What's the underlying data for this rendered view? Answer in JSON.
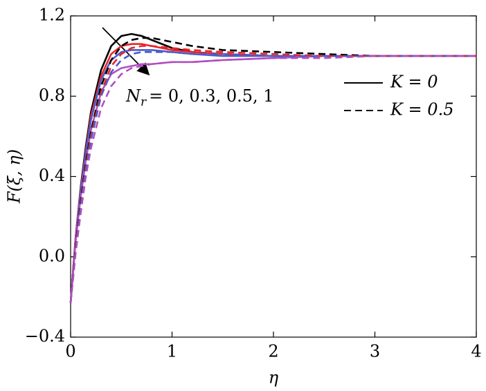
{
  "chart_data": {
    "type": "line",
    "xlabel": "η",
    "ylabel": "F(ξ, η)",
    "annotation": {
      "symbol": "N",
      "subscript": "r",
      "text": "= 0, 0.3, 0.5, 1"
    },
    "legend": [
      {
        "label": "K = 0",
        "dash": "solid"
      },
      {
        "label": "K = 0.5",
        "dash": "dashed"
      }
    ],
    "xlim": [
      0,
      4
    ],
    "ylim": [
      -0.4,
      1.2
    ],
    "xticks": [
      0,
      1,
      2,
      3,
      4
    ],
    "yticks": [
      {
        "value": -0.4,
        "label": "−0.4"
      },
      {
        "value": 0,
        "label": "0.0"
      },
      0.4,
      0.8,
      1.2
    ],
    "x": [
      0,
      0.05,
      0.1,
      0.15,
      0.2,
      0.3,
      0.4,
      0.5,
      0.6,
      0.7,
      0.8,
      1.0,
      1.2,
      1.5,
      2,
      2.5,
      3,
      4
    ],
    "series": [
      {
        "color": "#000000",
        "dash": "solid",
        "values": [
          -0.23,
          0.1,
          0.35,
          0.55,
          0.72,
          0.93,
          1.05,
          1.1,
          1.11,
          1.1,
          1.08,
          1.04,
          1.02,
          1.01,
          1.0,
          1.0,
          1.0,
          1.0
        ]
      },
      {
        "color": "#e8262b",
        "dash": "solid",
        "values": [
          -0.23,
          0.1,
          0.34,
          0.53,
          0.7,
          0.9,
          1.01,
          1.05,
          1.06,
          1.06,
          1.05,
          1.03,
          1.02,
          1.01,
          1.0,
          1.0,
          1.0,
          1.0
        ]
      },
      {
        "color": "#4a5cc8",
        "dash": "solid",
        "values": [
          -0.23,
          0.09,
          0.33,
          0.52,
          0.68,
          0.88,
          0.98,
          1.02,
          1.03,
          1.03,
          1.03,
          1.02,
          1.01,
          1.0,
          1.0,
          1.0,
          1.0,
          1.0
        ]
      },
      {
        "color": "#b04fc0",
        "dash": "solid",
        "values": [
          -0.23,
          0.08,
          0.3,
          0.48,
          0.63,
          0.82,
          0.91,
          0.94,
          0.95,
          0.96,
          0.96,
          0.97,
          0.97,
          0.98,
          0.99,
          1.0,
          1.0,
          1.0
        ]
      },
      {
        "color": "#000000",
        "dash": "dashed",
        "values": [
          -0.23,
          0.05,
          0.28,
          0.47,
          0.62,
          0.85,
          0.98,
          1.05,
          1.08,
          1.09,
          1.09,
          1.07,
          1.05,
          1.03,
          1.02,
          1.01,
          1.0,
          1.0
        ]
      },
      {
        "color": "#e8262b",
        "dash": "dashed",
        "values": [
          -0.23,
          0.04,
          0.26,
          0.45,
          0.6,
          0.82,
          0.95,
          1.01,
          1.04,
          1.05,
          1.05,
          1.04,
          1.03,
          1.02,
          1.01,
          1.0,
          1.0,
          1.0
        ]
      },
      {
        "color": "#4a5cc8",
        "dash": "dashed",
        "values": [
          -0.23,
          0.03,
          0.25,
          0.43,
          0.58,
          0.8,
          0.92,
          0.98,
          1.01,
          1.02,
          1.02,
          1.02,
          1.01,
          1.01,
          1.0,
          1.0,
          1.0,
          1.0
        ]
      },
      {
        "color": "#b04fc0",
        "dash": "dashed",
        "values": [
          -0.23,
          0.02,
          0.22,
          0.4,
          0.54,
          0.74,
          0.85,
          0.91,
          0.94,
          0.95,
          0.96,
          0.97,
          0.97,
          0.98,
          0.99,
          0.99,
          1.0,
          1.0
        ]
      }
    ]
  }
}
